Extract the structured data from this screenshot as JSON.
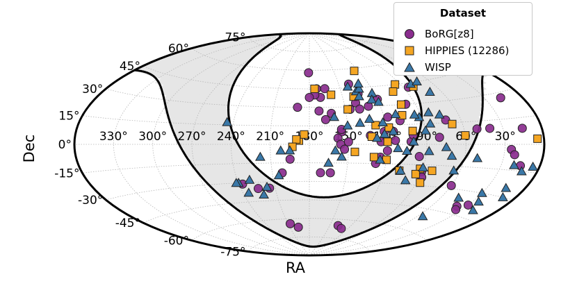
{
  "chart_data": {
    "type": "scatter",
    "projection": "aitoff",
    "xlabel": "RA",
    "ylabel": "Dec",
    "ra_tick_labels": [
      "330°",
      "300°",
      "270°",
      "240°",
      "210°",
      "180°",
      "150°",
      "120°",
      "90°",
      "60°",
      "30°"
    ],
    "dec_tick_labels": [
      "75°",
      "60°",
      "45°",
      "30°",
      "15°",
      "0°",
      "-15°",
      "-30°",
      "-45°",
      "-60°",
      "-75°"
    ],
    "grid": true,
    "legend": {
      "title": "Dataset",
      "placement": "top-right"
    },
    "colors": {
      "BoRG": "#8a2d8e",
      "HIPPIES": "#f5a623",
      "WISP": "#3a78a8",
      "zone": "#e6e6e6"
    },
    "series": [
      {
        "name": "BoRG[z8]",
        "marker": "circle",
        "points": [
          [
            -25,
            10
          ],
          [
            15,
            -12
          ],
          [
            22,
            -23
          ],
          [
            45,
            -35
          ],
          [
            57,
            -31
          ],
          [
            -17,
            -23
          ],
          [
            -9,
            -23
          ],
          [
            17,
            -67
          ],
          [
            27,
            -64
          ],
          [
            -15,
            45
          ],
          [
            -10,
            38
          ],
          [
            -8,
            27
          ],
          [
            -7,
            45
          ],
          [
            -5,
            40
          ],
          [
            0,
            38
          ],
          [
            1,
            58
          ],
          [
            -13,
            20
          ],
          [
            -18,
            25
          ],
          [
            -22,
            5
          ],
          [
            -24,
            0
          ],
          [
            -25,
            12
          ],
          [
            -27,
            -4
          ],
          [
            -30,
            2
          ],
          [
            -34,
            28
          ],
          [
            -40,
            48
          ],
          [
            -40,
            33
          ],
          [
            -42,
            28
          ],
          [
            -45,
            40
          ],
          [
            -47,
            7
          ],
          [
            -50,
            30
          ],
          [
            -52,
            -15
          ],
          [
            -55,
            -10
          ],
          [
            -55,
            2
          ],
          [
            -58,
            10
          ],
          [
            -60,
            -5
          ],
          [
            -60,
            35
          ],
          [
            -63,
            21
          ],
          [
            -65,
            10
          ],
          [
            -66,
            3
          ],
          [
            -72,
            18
          ],
          [
            -78,
            2
          ],
          [
            -80,
            7
          ],
          [
            -82,
            30
          ],
          [
            -85,
            -9
          ],
          [
            -90,
            -20
          ],
          [
            -92,
            -24
          ],
          [
            -95,
            42
          ],
          [
            -100,
            5
          ],
          [
            -108,
            17
          ],
          [
            -120,
            -28
          ],
          [
            -130,
            10
          ],
          [
            -140,
            10
          ],
          [
            -142,
            -40
          ],
          [
            -145,
            -42
          ],
          [
            -150,
            -38
          ],
          [
            -155,
            -3
          ],
          [
            -158,
            -6
          ],
          [
            -163,
            27
          ],
          [
            -165,
            9
          ],
          [
            -165,
            -12
          ],
          [
            35,
            -35
          ],
          [
            -42,
            -65
          ],
          [
            -50,
            -67
          ],
          [
            10,
            30
          ]
        ]
      },
      {
        "name": "HIPPIES (12286)",
        "marker": "square",
        "points": [
          [
            -55,
            58
          ],
          [
            -20,
            40
          ],
          [
            -5,
            45
          ],
          [
            -40,
            38
          ],
          [
            -100,
            42
          ],
          [
            -78,
            30
          ],
          [
            -85,
            45
          ],
          [
            -75,
            22
          ],
          [
            -80,
            10
          ],
          [
            -88,
            -18
          ],
          [
            -72,
            -20
          ],
          [
            -60,
            -12
          ],
          [
            -52,
            15
          ],
          [
            -48,
            6
          ],
          [
            -32,
            28
          ],
          [
            -62,
            13
          ],
          [
            -60,
            2
          ],
          [
            -50,
            -10
          ],
          [
            -35,
            -6
          ],
          [
            -78,
            40
          ],
          [
            -98,
            -19
          ],
          [
            -86,
            -22
          ],
          [
            -93,
            -28
          ],
          [
            -120,
            6
          ],
          [
            -112,
            14
          ],
          [
            8,
            3
          ],
          [
            10,
            4
          ],
          [
            4,
            8
          ],
          [
            13,
            -2
          ],
          [
            -175,
            3
          ]
        ]
      },
      {
        "name": "WISP",
        "marker": "triangle",
        "points": [
          [
            -38,
            46
          ],
          [
            -44,
            42
          ],
          [
            -48,
            44
          ],
          [
            -50,
            48
          ],
          [
            -58,
            40
          ],
          [
            -45,
            38
          ],
          [
            -55,
            35
          ],
          [
            -60,
            33
          ],
          [
            -30,
            15
          ],
          [
            -20,
            22
          ],
          [
            -40,
            17
          ],
          [
            -48,
            20
          ],
          [
            -58,
            17
          ],
          [
            -70,
            23
          ],
          [
            -65,
            10
          ],
          [
            -68,
            -3
          ],
          [
            -75,
            -5
          ],
          [
            -80,
            2
          ],
          [
            -92,
            -5
          ],
          [
            -95,
            15
          ],
          [
            -105,
            21
          ],
          [
            -120,
            60
          ],
          [
            -110,
            37
          ],
          [
            -100,
            44
          ],
          [
            -108,
            45
          ],
          [
            -90,
            10
          ],
          [
            -88,
            20
          ],
          [
            -85,
            22
          ],
          [
            -97,
            23
          ],
          [
            -105,
            -2
          ],
          [
            -110,
            -8
          ],
          [
            -115,
            -18
          ],
          [
            -90,
            -17
          ],
          [
            -80,
            -27
          ],
          [
            -73,
            -20
          ],
          [
            -55,
            -12
          ],
          [
            -58,
            8
          ],
          [
            -52,
            5
          ],
          [
            -130,
            -9
          ],
          [
            -125,
            -50
          ],
          [
            -135,
            -35
          ],
          [
            -150,
            -30
          ],
          [
            -155,
            -35
          ],
          [
            -170,
            -30
          ],
          [
            -165,
            -25
          ],
          [
            -168,
            -15
          ],
          [
            -160,
            -12
          ],
          [
            -175,
            -12
          ],
          [
            -160,
            -40
          ],
          [
            -25,
            -10
          ],
          [
            -20,
            -5
          ],
          [
            -15,
            -15
          ],
          [
            25,
            -25
          ],
          [
            37,
            -34
          ],
          [
            42,
            -40
          ],
          [
            50,
            -28
          ],
          [
            55,
            -38
          ],
          [
            60,
            -30
          ],
          [
            62,
            -30
          ],
          [
            65,
            17
          ],
          [
            38,
            -10
          ],
          [
            22,
            -5
          ],
          [
            15,
            -5
          ]
        ]
      }
    ]
  }
}
